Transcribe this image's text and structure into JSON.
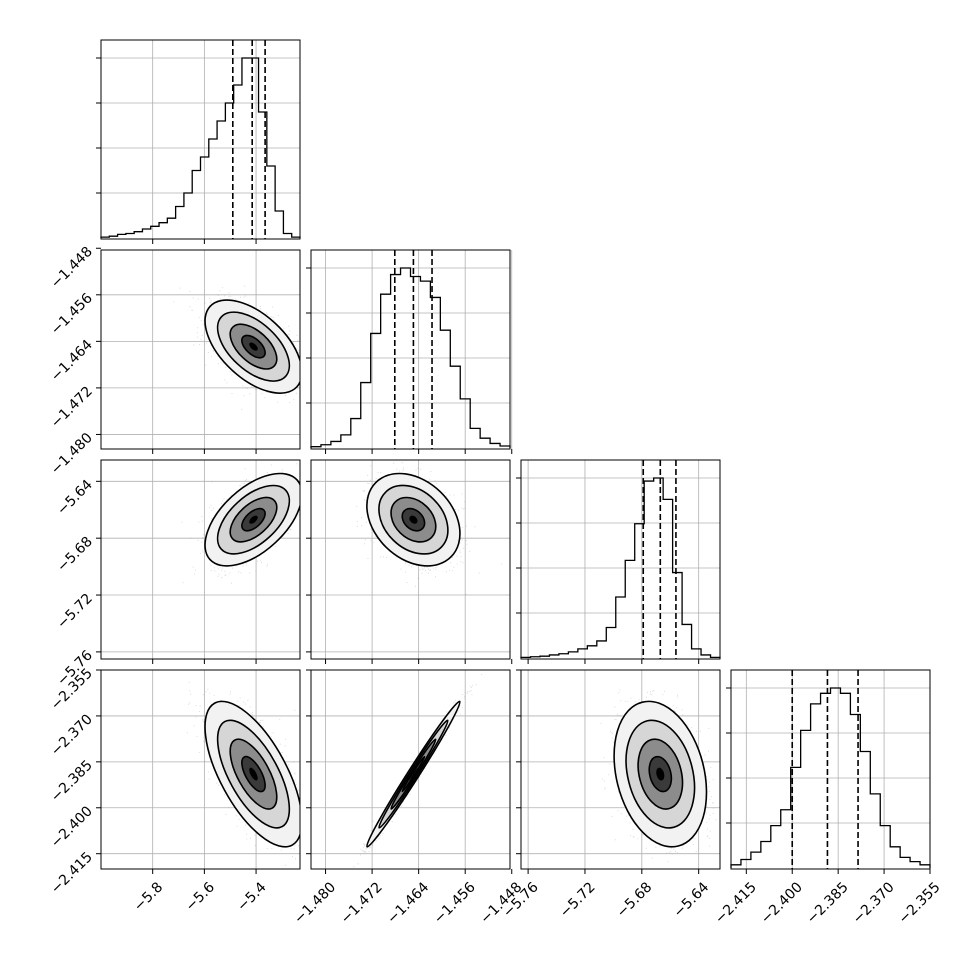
{
  "chart_data": {
    "type": "scatter",
    "subtype": "corner-plot",
    "grid": true,
    "parameters": [
      {
        "lim": [
          -6.0,
          -5.23
        ],
        "ticks": [
          -5.8,
          -5.6,
          -5.4
        ],
        "tick_labels": [
          "−5.8",
          "−5.6",
          "−5.4"
        ],
        "quantiles": [
          -5.49,
          -5.415,
          -5.365
        ],
        "mean": -5.41,
        "sd": 0.075
      },
      {
        "lim": [
          -1.4825,
          -1.4483
        ],
        "ticks": [
          -1.48,
          -1.472,
          -1.464,
          -1.456,
          -1.448
        ],
        "tick_labels": [
          "−1.480",
          "−1.472",
          "−1.464",
          "−1.456",
          "−1.448"
        ],
        "quantiles": [
          -1.4681,
          -1.4649,
          -1.4617
        ],
        "mean": -1.4649,
        "sd": 0.0032
      },
      {
        "lim": [
          -5.765,
          -5.625
        ],
        "ticks": [
          -5.76,
          -5.72,
          -5.68,
          -5.64
        ],
        "tick_labels": [
          "−5.76",
          "−5.72",
          "−5.68",
          "−5.64"
        ],
        "quantiles": [
          -5.679,
          -5.667,
          -5.656
        ],
        "mean": -5.667,
        "sd": 0.013
      },
      {
        "lim": [
          -2.42,
          -2.355
        ],
        "ticks": [
          -2.415,
          -2.4,
          -2.385,
          -2.37,
          -2.355
        ],
        "tick_labels": [
          "−2.415",
          "−2.400",
          "−2.385",
          "−2.370",
          "−2.355"
        ],
        "quantiles": [
          -2.4,
          -2.3885,
          -2.3785
        ],
        "mean": -2.389,
        "sd": 0.0095
      }
    ],
    "histograms": [
      [
        1,
        2,
        4,
        5,
        7,
        10,
        13,
        17,
        22,
        35,
        50,
        75,
        90,
        110,
        130,
        150,
        170,
        200,
        200,
        140,
        80,
        30,
        5,
        1
      ],
      [
        2,
        5,
        10,
        20,
        45,
        100,
        175,
        235,
        265,
        275,
        262,
        255,
        230,
        180,
        125,
        75,
        30,
        15,
        7,
        3
      ],
      [
        1,
        2,
        3,
        5,
        7,
        10,
        15,
        20,
        28,
        50,
        100,
        160,
        220,
        290,
        295,
        260,
        140,
        55,
        15,
        5,
        1
      ],
      [
        3,
        8,
        15,
        25,
        40,
        55,
        95,
        130,
        155,
        165,
        170,
        165,
        145,
        110,
        70,
        40,
        20,
        10,
        6,
        3
      ]
    ],
    "correlations": [
      [
        1,
        -0.55,
        0.55,
        -0.65
      ],
      [
        -0.55,
        1,
        -0.3,
        0.99
      ],
      [
        0.55,
        -0.3,
        1,
        -0.25
      ],
      [
        -0.65,
        0.99,
        -0.25,
        1
      ]
    ]
  }
}
